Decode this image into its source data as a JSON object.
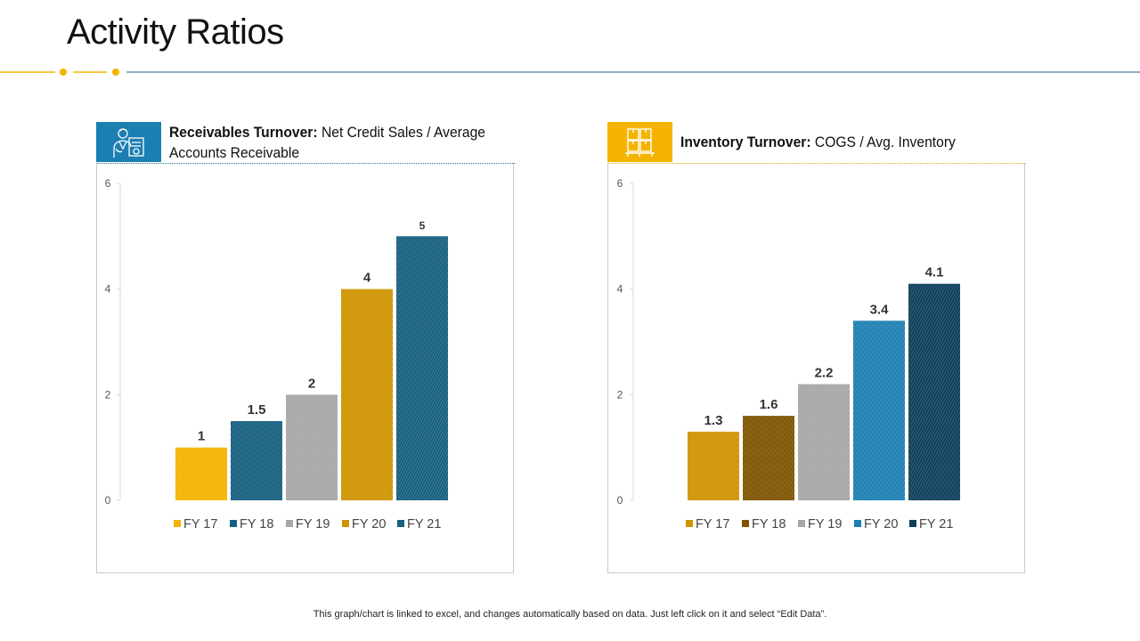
{
  "page": {
    "title": "Activity Ratios",
    "footer": "This graph/chart is linked to excel,  and changes automatically based on data. Just left click on it and select “Edit Data”."
  },
  "panels": [
    {
      "bold": "Receivables Turnover:",
      "rest": " Net Credit Sales / Average Accounts Receivable",
      "icon": "doctor-document-icon"
    },
    {
      "bold": "Inventory Turnover:",
      "rest": " COGS / Avg.  Inventory",
      "icon": "inventory-boxes-icon"
    }
  ],
  "colors": {
    "orange": "#f4b300",
    "gold": "#cf9300",
    "brown": "#7f5400",
    "gray": "#a6a6a6",
    "blue": "#1c7fb2",
    "teal": "#165f80",
    "navy": "#0e3f5a"
  },
  "chart_data": [
    {
      "type": "bar",
      "title": "Receivables Turnover",
      "categories": [
        "FY 17",
        "FY 18",
        "FY 19",
        "FY 20",
        "FY 21"
      ],
      "values": [
        1,
        1.5,
        2,
        4,
        5
      ],
      "labels": [
        "1",
        "1.5",
        "2",
        "4",
        "5"
      ],
      "colors": [
        "#f4b300",
        "#165f80",
        "#a6a6a6",
        "#cf9300",
        "#165f80"
      ],
      "ylim": [
        0,
        6
      ],
      "yticks": [
        0,
        2,
        4,
        6
      ],
      "legend": "bottom",
      "xlabel": "",
      "ylabel": ""
    },
    {
      "type": "bar",
      "title": "Inventory Turnover",
      "categories": [
        "FY 17",
        "FY 18",
        "FY 19",
        "FY 20",
        "FY 21"
      ],
      "values": [
        1.3,
        1.6,
        2.2,
        3.4,
        4.1
      ],
      "labels": [
        "1.3",
        "1.6",
        "2.2",
        "3.4",
        "4.1"
      ],
      "colors": [
        "#cf9300",
        "#7f5400",
        "#a6a6a6",
        "#1c7fb2",
        "#0e3f5a"
      ],
      "ylim": [
        0,
        6
      ],
      "yticks": [
        0,
        2,
        4,
        6
      ],
      "legend": "bottom",
      "xlabel": "",
      "ylabel": ""
    }
  ]
}
